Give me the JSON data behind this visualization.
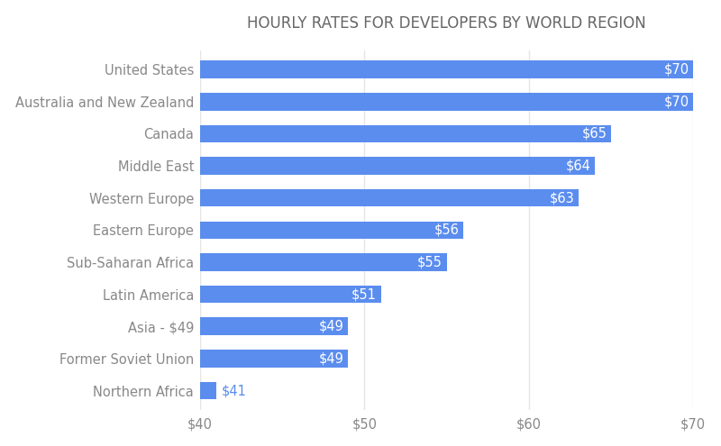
{
  "title": "HOURLY RATES FOR DEVELOPERS BY WORLD REGION",
  "categories": [
    "Northern Africa",
    "Former Soviet Union",
    "Asia - $49",
    "Latin America",
    "Sub-Saharan Africa",
    "Eastern Europe",
    "Western Europe",
    "Middle East",
    "Canada",
    "Australia and New Zealand",
    "United States"
  ],
  "values": [
    41,
    49,
    49,
    51,
    55,
    56,
    63,
    64,
    65,
    70,
    70
  ],
  "bar_color": "#5B8DEF",
  "label_color_inside": "#ffffff",
  "label_color_outside": "#5B8DEF",
  "background_color": "#ffffff",
  "title_color": "#666666",
  "axis_label_color": "#888888",
  "grid_color": "#e5e5e5",
  "xlim_min": 40,
  "xlim_max": 70,
  "xticks": [
    40,
    50,
    60,
    70
  ],
  "xtick_labels": [
    "$40",
    "$50",
    "$60",
    "$70"
  ],
  "title_fontsize": 12,
  "label_fontsize": 10.5,
  "tick_fontsize": 10.5,
  "bar_height": 0.55,
  "outside_threshold": 43
}
